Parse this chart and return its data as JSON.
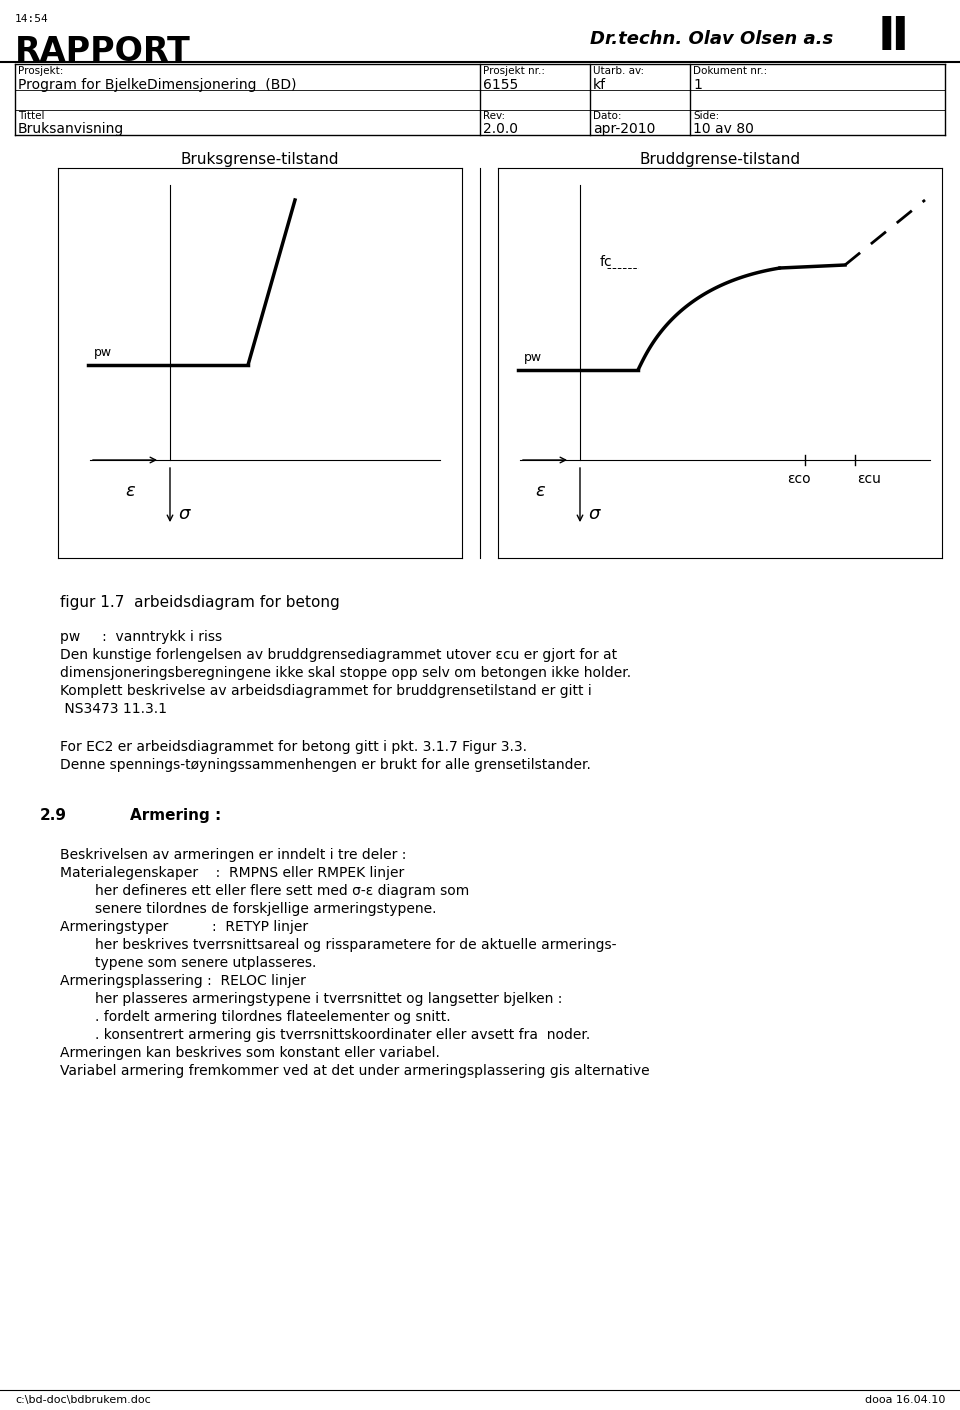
{
  "bg_color": "#ffffff",
  "text_color": "#000000",
  "header_time": "14:54",
  "header_title_bold": "RAPPORT",
  "header_company": "Dr.techn. Olav Olsen a.s",
  "table_labels": [
    "Prosjekt:",
    "Prosjekt nr.:",
    "Utarb. av:",
    "Dokument nr.:"
  ],
  "table_row1": [
    "Program for BjelkeDimensjonering  (BD)",
    "6155",
    "kf",
    "1"
  ],
  "table_labels2": [
    "Tittel",
    "Rev:",
    "Dato:",
    "Side:"
  ],
  "table_row2": [
    "Bruksanvisning",
    "2.0.0",
    "apr-2010",
    "10 av 80"
  ],
  "diagram_title_left": "Bruksgrense-tilstand",
  "diagram_title_right": "Bruddgrense-tilstand",
  "fig_caption": "figur 1.7  arbeidsdiagram for betong",
  "para1_lines": [
    "pw     :  vanntrykk i riss",
    "Den kunstige forlengelsen av bruddgrensediagrammet utover εcu er gjort for at",
    "dimensjoneringsberegningene ikke skal stoppe opp selv om betongen ikke holder.",
    "Komplett beskrivelse av arbeidsdiagrammet for bruddgrensetilstand er gitt i",
    " NS3473 11.3.1"
  ],
  "para2_lines": [
    "For EC2 er arbeidsdiagrammet for betong gitt i pkt. 3.1.7 Figur 3.3.",
    "Denne spennings-tøyningssammenhengen er brukt for alle grensetilstander."
  ],
  "section_num": "2.9",
  "section_title": "Armering :",
  "para3_lines": [
    "Beskrivelsen av armeringen er inndelt i tre deler :",
    "Materialegenskaper    :  RMPNS eller RMPEK linjer",
    "        her defineres ett eller flere sett med σ-ε diagram som",
    "        senere tilordnes de forskjellige armeringstypene.",
    "Armeringstyper          :  RETYP linjer",
    "        her beskrives tverrsnittsareal og rissparametere for de aktuelle armerings-",
    "        typene som senere utplasseres.",
    "Armeringsplassering :  RELOC linjer",
    "        her plasseres armeringstypene i tverrsnittet og langsetter bjelken :",
    "        . fordelt armering tilordnes flateelementer og snitt.",
    "        . konsentrert armering gis tverrsnittskoordinater eller avsett fra  noder.",
    "Armeringen kan beskrives som konstant eller variabel.",
    "Variabel armering fremkommer ved at det under armeringsplassering gis alternative"
  ],
  "footer_left": "c:\\bd-doc\\bdbrukem.doc",
  "footer_right": "dooa 16.04.10"
}
